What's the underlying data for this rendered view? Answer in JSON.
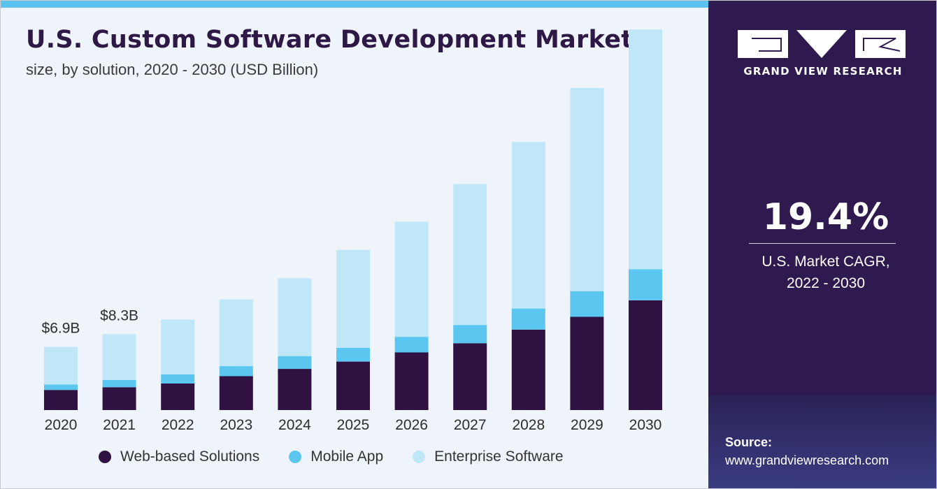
{
  "header": {
    "title": "U.S. Custom Software Development Market",
    "subtitle": "size, by solution, 2020 - 2030 (USD Billion)"
  },
  "brand": {
    "name": "GRAND VIEW RESEARCH"
  },
  "cagr": {
    "value": "19.4%",
    "label_line1": "U.S. Market CAGR,",
    "label_line2": "2022 - 2030"
  },
  "source": {
    "title": "Source:",
    "url": "www.grandviewresearch.com"
  },
  "colors": {
    "web": "#2f1242",
    "mobile": "#5bc7f1",
    "enterprise": "#bfe7f8",
    "panel": "#2f1a4f",
    "topbar": "#5bc2ee"
  },
  "chart_data": {
    "type": "bar",
    "stacked": true,
    "title": "U.S. Custom Software Development Market",
    "subtitle": "size, by solution, 2020 - 2030 (USD Billion)",
    "categories": [
      "2020",
      "2021",
      "2022",
      "2023",
      "2024",
      "2025",
      "2026",
      "2027",
      "2028",
      "2029",
      "2030"
    ],
    "series": [
      {
        "name": "Web-based Solutions",
        "color": "#2f1242",
        "values": [
          2.2,
          2.5,
          2.9,
          3.7,
          4.5,
          5.3,
          6.3,
          7.3,
          8.8,
          10.2,
          12.0
        ]
      },
      {
        "name": "Mobile App",
        "color": "#5bc7f1",
        "values": [
          0.6,
          0.8,
          1.0,
          1.1,
          1.4,
          1.5,
          1.7,
          2.0,
          2.3,
          2.8,
          3.4
        ]
      },
      {
        "name": "Enterprise Software",
        "color": "#bfe7f8",
        "values": [
          4.1,
          5.0,
          6.0,
          7.3,
          8.5,
          10.7,
          12.6,
          15.4,
          18.2,
          22.2,
          26.2
        ]
      }
    ],
    "data_labels": [
      {
        "category": "2020",
        "text": "$6.9B"
      },
      {
        "category": "2021",
        "text": "$8.3B"
      }
    ],
    "ylim": [
      0,
      42
    ],
    "grid": false,
    "legend": "bottom"
  }
}
